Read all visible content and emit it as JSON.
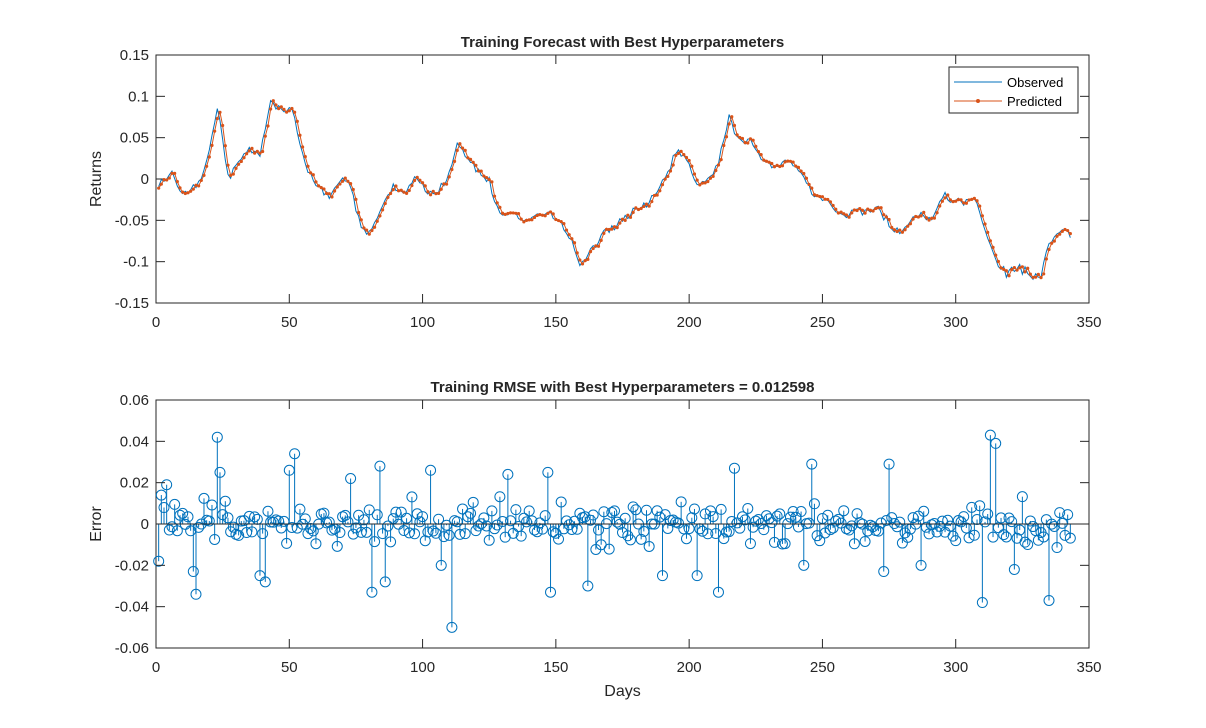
{
  "chart_data": [
    {
      "type": "line",
      "title": "Training Forecast with Best Hyperparameters",
      "xlabel": "",
      "ylabel": "Returns",
      "xlim": [
        0,
        350
      ],
      "ylim": [
        -0.15,
        0.15
      ],
      "xticks": [
        0,
        50,
        100,
        150,
        200,
        250,
        300,
        350
      ],
      "yticks": [
        -0.15,
        -0.1,
        -0.05,
        0,
        0.05,
        0.1,
        0.15
      ],
      "ytick_labels": [
        "-0.15",
        "-0.1",
        "-0.05",
        "0",
        "0.05",
        "0.1",
        "0.15"
      ],
      "legend_position": "top-right",
      "grid": false,
      "keypoints_x": [
        0,
        5,
        8,
        14,
        18,
        22,
        26,
        30,
        34,
        38,
        42,
        46,
        50,
        55,
        60,
        64,
        68,
        72,
        76,
        80,
        84,
        88,
        92,
        96,
        100,
        104,
        108,
        112,
        116,
        120,
        124,
        128,
        132,
        136,
        140,
        146,
        150,
        155,
        158,
        162,
        166,
        170,
        175,
        180,
        185,
        190,
        194,
        198,
        202,
        206,
        210,
        214,
        218,
        222,
        226,
        230,
        234,
        238,
        242,
        246,
        250,
        254,
        258,
        262,
        266,
        270,
        274,
        278,
        282,
        286,
        290,
        294,
        298,
        302,
        306,
        310,
        314,
        318,
        322,
        326,
        330,
        334,
        338,
        342
      ],
      "keypoints_y": [
        -0.005,
        0.005,
        -0.015,
        -0.01,
        0.02,
        0.085,
        0.005,
        0.02,
        0.035,
        0.03,
        0.095,
        0.085,
        0.085,
        0.015,
        -0.01,
        -0.02,
        0.0,
        -0.01,
        -0.055,
        -0.065,
        -0.03,
        -0.01,
        -0.02,
        0.0,
        -0.015,
        -0.02,
        0.0,
        0.045,
        0.025,
        0.01,
        -0.005,
        -0.045,
        -0.04,
        -0.05,
        -0.045,
        -0.04,
        -0.05,
        -0.075,
        -0.105,
        -0.085,
        -0.07,
        -0.06,
        -0.05,
        -0.035,
        -0.025,
        0.0,
        0.03,
        0.025,
        -0.01,
        0.0,
        0.02,
        0.075,
        0.045,
        0.05,
        0.025,
        0.015,
        0.02,
        0.02,
        0.0,
        -0.02,
        -0.025,
        -0.04,
        -0.045,
        -0.035,
        -0.04,
        -0.035,
        -0.055,
        -0.065,
        -0.05,
        -0.045,
        -0.05,
        -0.02,
        -0.03,
        -0.03,
        -0.02,
        -0.06,
        -0.1,
        -0.115,
        -0.105,
        -0.115,
        -0.12,
        -0.08,
        -0.06,
        -0.065
      ],
      "n_points": 343,
      "series": [
        {
          "name": "Observed",
          "color": "#0072BD",
          "style": "line"
        },
        {
          "name": "Predicted",
          "color": "#D95319",
          "style": "line-dot"
        }
      ]
    },
    {
      "type": "stem",
      "title": "Training RMSE with Best Hyperparameters = 0.012598",
      "xlabel": "Days",
      "ylabel": "Error",
      "xlim": [
        0,
        350
      ],
      "ylim": [
        -0.06,
        0.06
      ],
      "xticks": [
        0,
        50,
        100,
        150,
        200,
        250,
        300,
        350
      ],
      "yticks": [
        -0.06,
        -0.04,
        -0.02,
        0,
        0.02,
        0.04,
        0.06
      ],
      "ytick_labels": [
        "-0.06",
        "-0.04",
        "-0.02",
        "0",
        "0.02",
        "0.04",
        "0.06"
      ],
      "grid": false,
      "color": "#0072BD",
      "notable_points": [
        {
          "x": 1,
          "y": -0.018
        },
        {
          "x": 2,
          "y": 0.014
        },
        {
          "x": 4,
          "y": 0.019
        },
        {
          "x": 14,
          "y": -0.023
        },
        {
          "x": 15,
          "y": -0.034
        },
        {
          "x": 23,
          "y": 0.042
        },
        {
          "x": 24,
          "y": 0.025
        },
        {
          "x": 39,
          "y": -0.025
        },
        {
          "x": 41,
          "y": -0.028
        },
        {
          "x": 50,
          "y": 0.026
        },
        {
          "x": 52,
          "y": 0.034
        },
        {
          "x": 73,
          "y": 0.022
        },
        {
          "x": 81,
          "y": -0.033
        },
        {
          "x": 84,
          "y": 0.028
        },
        {
          "x": 86,
          "y": -0.028
        },
        {
          "x": 103,
          "y": 0.026
        },
        {
          "x": 107,
          "y": -0.02
        },
        {
          "x": 111,
          "y": -0.05
        },
        {
          "x": 132,
          "y": 0.024
        },
        {
          "x": 147,
          "y": 0.025
        },
        {
          "x": 148,
          "y": -0.033
        },
        {
          "x": 162,
          "y": -0.03
        },
        {
          "x": 190,
          "y": -0.025
        },
        {
          "x": 203,
          "y": -0.025
        },
        {
          "x": 211,
          "y": -0.033
        },
        {
          "x": 217,
          "y": 0.027
        },
        {
          "x": 243,
          "y": -0.02
        },
        {
          "x": 246,
          "y": 0.029
        },
        {
          "x": 273,
          "y": -0.023
        },
        {
          "x": 275,
          "y": 0.029
        },
        {
          "x": 287,
          "y": -0.02
        },
        {
          "x": 310,
          "y": -0.038
        },
        {
          "x": 313,
          "y": 0.043
        },
        {
          "x": 315,
          "y": 0.039
        },
        {
          "x": 322,
          "y": -0.022
        },
        {
          "x": 335,
          "y": -0.037
        }
      ],
      "n_points": 343,
      "rmse": 0.012598
    }
  ],
  "legend": {
    "observed_label": "Observed",
    "predicted_label": "Predicted"
  }
}
